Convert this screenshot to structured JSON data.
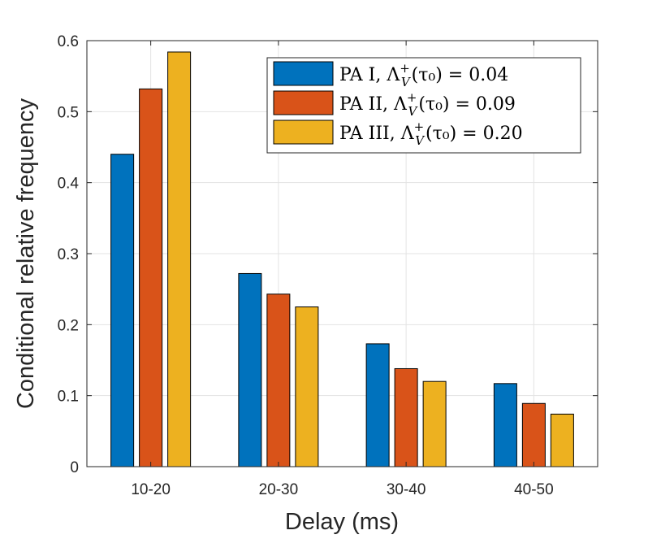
{
  "chart_data": {
    "type": "bar",
    "title": "",
    "xlabel": "Delay (ms)",
    "ylabel": "Conditional relative frequency",
    "categories": [
      "10-20",
      "20-30",
      "30-40",
      "40-50"
    ],
    "ylim": [
      0,
      0.6
    ],
    "yticks": [
      0,
      0.1,
      0.2,
      0.3,
      0.4,
      0.5,
      0.6
    ],
    "ytick_labels": [
      "0",
      "0.1",
      "0.2",
      "0.3",
      "0.4",
      "0.5",
      "0.6"
    ],
    "grid": true,
    "legend_position": "top-right",
    "series": [
      {
        "name": "PA I, Λ_V^+(τ_0) = 0.04",
        "label_main": "PA I, Λ",
        "label_sup": "+",
        "label_sub": "V",
        "label_tail": "(τ₀) = 0.04",
        "color": "#0072BD",
        "values": [
          0.44,
          0.272,
          0.173,
          0.117
        ]
      },
      {
        "name": "PA II, Λ_V^+(τ_0) = 0.09",
        "label_main": "PA II, Λ",
        "label_sup": "+",
        "label_sub": "V",
        "label_tail": "(τ₀) = 0.09",
        "color": "#D95319",
        "values": [
          0.532,
          0.243,
          0.138,
          0.089
        ]
      },
      {
        "name": "PA III, Λ_V^+(τ_0) = 0.20",
        "label_main": "PA III, Λ",
        "label_sup": "+",
        "label_sub": "V",
        "label_tail": "(τ₀) = 0.20",
        "color": "#EDB120",
        "values": [
          0.584,
          0.225,
          0.12,
          0.074
        ]
      }
    ]
  }
}
